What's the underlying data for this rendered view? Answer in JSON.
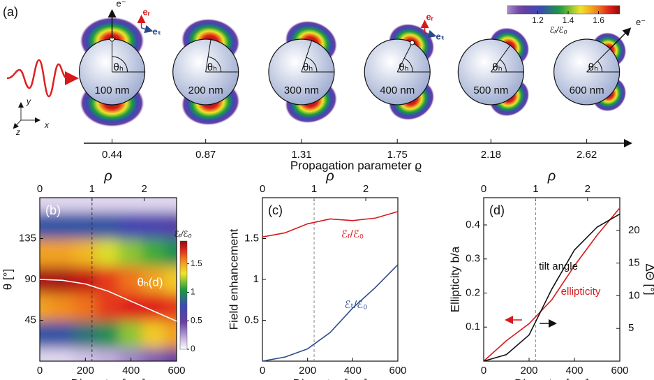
{
  "panel_a": {
    "label": "(a)",
    "axis_title": "Propagation parameter ϱ",
    "rho_lim": [
      0.31,
      2.82
    ],
    "rho_ticks": [
      0.44,
      0.87,
      1.31,
      1.75,
      2.18,
      2.62
    ],
    "diameters": [
      "100 nm",
      "200 nm",
      "300 nm",
      "400 nm",
      "500 nm",
      "600 nm"
    ],
    "angle_label": "θₕ",
    "electron": "e⁻",
    "unit_r": "eᵣ",
    "unit_t": "eₜ",
    "axes": [
      "y",
      "z",
      "x"
    ],
    "colorbar": {
      "label": "ℰᵣ/ℰ₀",
      "lim": [
        1.0,
        1.74
      ],
      "ticks": [
        1.2,
        1.4,
        1.6
      ]
    }
  },
  "chart_data": [
    {
      "type": "heatmap",
      "label": "(b)",
      "xlabel": "Diameter [nm]",
      "ylabel": "θ [°]",
      "top_label": "ρ",
      "xlim": [
        0,
        600
      ],
      "xticks": [
        0,
        200,
        400,
        600
      ],
      "ylim": [
        0,
        180
      ],
      "yticks": [
        45,
        90,
        135
      ],
      "top_lim": [
        0,
        2.62
      ],
      "top_ticks": [
        0,
        1,
        2
      ],
      "x": [
        0,
        100,
        200,
        300,
        400,
        500,
        600
      ],
      "y": [
        0,
        30,
        60,
        90,
        120,
        150,
        180
      ],
      "z": [
        [
          0.1,
          0.8,
          1.5,
          1.85,
          1.5,
          0.8,
          0.1
        ],
        [
          0.1,
          0.8,
          1.55,
          1.85,
          1.5,
          0.8,
          0.1
        ],
        [
          0.15,
          0.9,
          1.6,
          1.8,
          1.45,
          0.8,
          0.1
        ],
        [
          0.2,
          1.0,
          1.7,
          1.7,
          1.3,
          0.8,
          0.1
        ],
        [
          0.3,
          1.2,
          1.75,
          1.6,
          1.2,
          0.7,
          0.1
        ],
        [
          0.4,
          1.4,
          1.75,
          1.5,
          1.1,
          0.65,
          0.1
        ],
        [
          0.5,
          1.5,
          1.7,
          1.4,
          1.0,
          0.6,
          0.1
        ]
      ],
      "colorbar": {
        "label": "ℰᵣ/ℰ₀",
        "lim": [
          0,
          1.9
        ],
        "ticks": [
          0,
          0.5,
          1,
          1.5
        ]
      },
      "series": [
        {
          "name": "θₕ(d)",
          "color": "#ffffff",
          "x": [
            0,
            100,
            200,
            300,
            400,
            500,
            600
          ],
          "values": [
            90,
            89,
            85,
            77,
            66,
            55,
            44
          ]
        }
      ]
    },
    {
      "type": "line",
      "label": "(c)",
      "xlabel": "Diameter [nm]",
      "ylabel": "Field enhancement",
      "top_label": "ρ",
      "xlim": [
        0,
        600
      ],
      "xticks": [
        0,
        200,
        400,
        600
      ],
      "ylim": [
        0,
        2.0
      ],
      "yticks": [
        0.5,
        1,
        1.5
      ],
      "top_lim": [
        0,
        2.62
      ],
      "top_ticks": [
        0,
        1,
        2
      ],
      "x": [
        0,
        100,
        200,
        300,
        400,
        500,
        600
      ],
      "series": [
        {
          "name": "ℰᵣ/ℰ₀",
          "color": "#d7191c",
          "values": [
            1.52,
            1.57,
            1.68,
            1.74,
            1.72,
            1.75,
            1.83
          ]
        },
        {
          "name": "ℰₜ/ℰ₀",
          "color": "#2b4a8c",
          "values": [
            0,
            0.05,
            0.15,
            0.35,
            0.65,
            0.9,
            1.18
          ]
        }
      ]
    },
    {
      "type": "line",
      "label": "(d)",
      "xlabel": "Diameter [nm]",
      "ylabel": "Ellipticity b/a",
      "y2label": "ΔΘ [°]",
      "top_label": "ρ",
      "xlim": [
        0,
        600
      ],
      "xticks": [
        0,
        200,
        400,
        600
      ],
      "ylim": [
        0,
        0.48
      ],
      "yticks": [
        0.1,
        0.2,
        0.3,
        0.4
      ],
      "y2lim": [
        0,
        25
      ],
      "y2ticks": [
        5,
        10,
        15,
        20
      ],
      "top_lim": [
        0,
        2.62
      ],
      "top_ticks": [
        0,
        1,
        2
      ],
      "x": [
        0,
        100,
        200,
        300,
        400,
        500,
        600
      ],
      "series": [
        {
          "name": "ellipticity",
          "color": "#d7191c",
          "values": [
            0,
            0.06,
            0.11,
            0.18,
            0.28,
            0.37,
            0.45
          ]
        },
        {
          "name": "tilt angle",
          "color": "#111111",
          "axis": "y2",
          "values": [
            0,
            1,
            4,
            11,
            17,
            20.5,
            22.5
          ]
        }
      ]
    }
  ]
}
